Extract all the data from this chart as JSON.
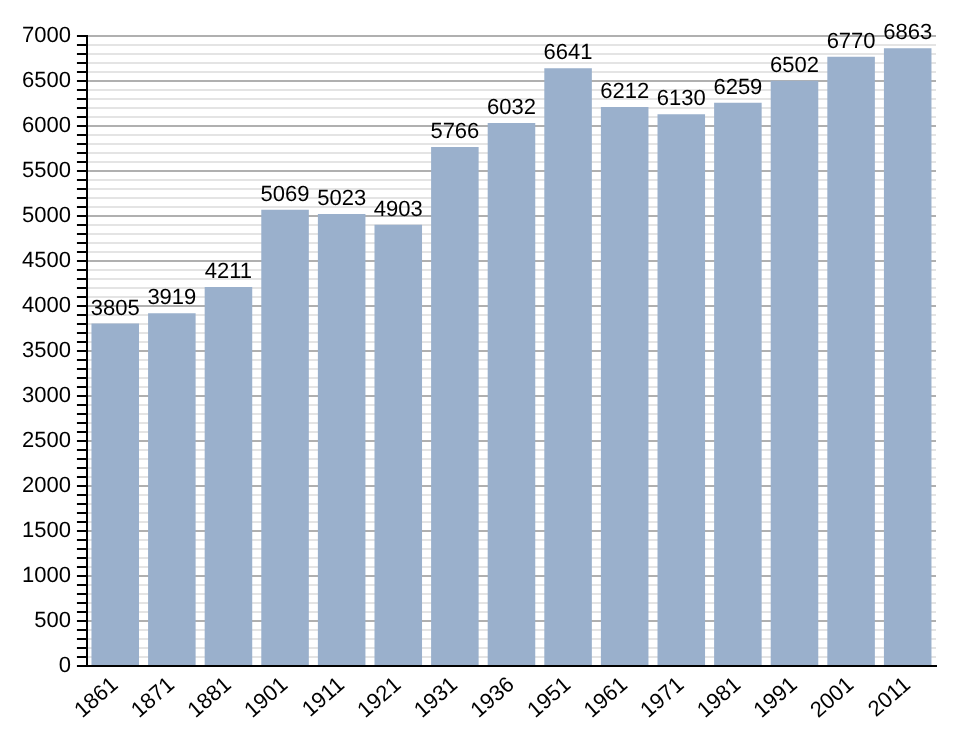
{
  "chart_data": {
    "type": "bar",
    "categories": [
      "1861",
      "1871",
      "1881",
      "1901",
      "1911",
      "1921",
      "1931",
      "1936",
      "1951",
      "1961",
      "1971",
      "1981",
      "1991",
      "2001",
      "2011"
    ],
    "values": [
      3805,
      3919,
      4211,
      5069,
      5023,
      4903,
      5766,
      6032,
      6641,
      6212,
      6130,
      6259,
      6502,
      6770,
      6863
    ],
    "color": "#9ab0cc",
    "data_labels": true,
    "grid": "y",
    "legend": false,
    "ylim": [
      0,
      7000
    ],
    "yticks": [
      0,
      {
        "value": 100,
        "label": null
      },
      {
        "value": 200,
        "label": null
      },
      {
        "value": 300,
        "label": null
      },
      {
        "value": 400,
        "label": null
      },
      500,
      {
        "value": 600,
        "label": null
      },
      {
        "value": 700,
        "label": null
      },
      {
        "value": 800,
        "label": null
      },
      {
        "value": 900,
        "label": null
      },
      1000,
      {
        "value": 1100,
        "label": null
      },
      {
        "value": 1200,
        "label": null
      },
      {
        "value": 1300,
        "label": null
      },
      {
        "value": 1400,
        "label": null
      },
      1500,
      {
        "value": 1600,
        "label": null
      },
      {
        "value": 1700,
        "label": null
      },
      {
        "value": 1800,
        "label": null
      },
      {
        "value": 1900,
        "label": null
      },
      2000,
      {
        "value": 2100,
        "label": null
      },
      {
        "value": 2200,
        "label": null
      },
      {
        "value": 2300,
        "label": null
      },
      {
        "value": 2400,
        "label": null
      },
      2500,
      {
        "value": 2600,
        "label": null
      },
      {
        "value": 2700,
        "label": null
      },
      {
        "value": 2800,
        "label": null
      },
      {
        "value": 2900,
        "label": null
      },
      3000,
      {
        "value": 3100,
        "label": null
      },
      {
        "value": 3200,
        "label": null
      },
      {
        "value": 3300,
        "label": null
      },
      {
        "value": 3400,
        "label": null
      },
      3500,
      {
        "value": 3600,
        "label": null
      },
      {
        "value": 3700,
        "label": null
      },
      {
        "value": 3800,
        "label": null
      },
      {
        "value": 3900,
        "label": null
      },
      4000,
      {
        "value": 4100,
        "label": null
      },
      {
        "value": 4200,
        "label": null
      },
      {
        "value": 4300,
        "label": null
      },
      {
        "value": 4400,
        "label": null
      },
      4500,
      {
        "value": 4600,
        "label": null
      },
      {
        "value": 4700,
        "label": null
      },
      {
        "value": 4800,
        "label": null
      },
      {
        "value": 4900,
        "label": null
      },
      5000,
      {
        "value": 5100,
        "label": null
      },
      {
        "value": 5200,
        "label": null
      },
      {
        "value": 5300,
        "label": null
      },
      {
        "value": 5400,
        "label": null
      },
      5500,
      {
        "value": 5600,
        "label": null
      },
      {
        "value": 5700,
        "label": null
      },
      {
        "value": 5800,
        "label": null
      },
      {
        "value": 5900,
        "label": null
      },
      6000,
      {
        "value": 6100,
        "label": null
      },
      {
        "value": 6200,
        "label": null
      },
      {
        "value": 6300,
        "label": null
      },
      {
        "value": 6400,
        "label": null
      },
      6500,
      {
        "value": 6600,
        "label": null
      },
      {
        "value": 6700,
        "label": null
      },
      {
        "value": 6800,
        "label": null
      },
      {
        "value": 6900,
        "label": null
      },
      7000
    ]
  }
}
